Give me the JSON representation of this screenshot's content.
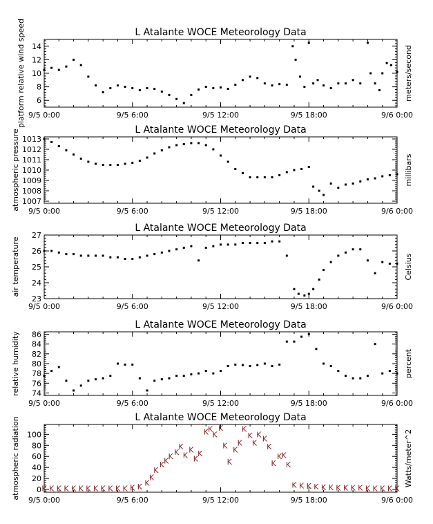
{
  "chart_data": [
    {
      "type": "scatter",
      "title": "L Atalante WOCE Meteorology Data",
      "ylabel": "platform relative wind speed",
      "ylabel_right": "meters/second",
      "xticks": [
        "9/5 0:00",
        "9/5 6:00",
        "9/5 12:00",
        "9/5 18:00",
        "9/6 0:00"
      ],
      "xlim": [
        0,
        24
      ],
      "ylim": [
        5,
        15
      ],
      "yticks": [
        6,
        8,
        10,
        12,
        14
      ],
      "series": [
        {
          "color": "#000000",
          "x": [
            0,
            0.5,
            1,
            1.5,
            2,
            2.5,
            3,
            3.5,
            4,
            4.5,
            5,
            5.5,
            6,
            6.5,
            7,
            7.5,
            8,
            8.5,
            9,
            9.5,
            10,
            10.5,
            11,
            11.5,
            12,
            12.5,
            13,
            13.5,
            14,
            14.5,
            15,
            15.5,
            16,
            16.5,
            16.9,
            17.1,
            17.4,
            17.7,
            18,
            18.3,
            18.6,
            19,
            19.5,
            20,
            20.5,
            21,
            21.5,
            22,
            22.2,
            22.5,
            22.8,
            23,
            23.3,
            23.6,
            24
          ],
          "y": [
            10.5,
            10.8,
            10.5,
            11,
            12,
            11.2,
            9.5,
            8.2,
            7.2,
            7.8,
            8.2,
            8,
            7.8,
            7.5,
            7.8,
            7.7,
            7.3,
            6.8,
            6.2,
            5.6,
            6.8,
            7.6,
            8,
            7.8,
            7.9,
            7.7,
            8.3,
            9,
            9.5,
            9.3,
            8.5,
            8.2,
            8.4,
            8.3,
            14,
            12,
            9.5,
            8,
            14.5,
            8.5,
            9,
            8.2,
            7.8,
            8.5,
            8.5,
            9,
            8.5,
            14.5,
            10,
            8.5,
            7.5,
            10,
            11.5,
            11.2,
            10.2
          ]
        }
      ]
    },
    {
      "type": "scatter",
      "title": "L Atalante WOCE Meteorology Data",
      "ylabel": "atmospheric pressure",
      "ylabel_right": "millibars",
      "xticks": [
        "9/5 0:00",
        "9/5 6:00",
        "9/5 12:00",
        "9/5 18:00",
        "9/6 0:00"
      ],
      "xlim": [
        0,
        24
      ],
      "ylim": [
        1006.8,
        1013.2
      ],
      "yticks": [
        1007,
        1008,
        1009,
        1010,
        1011,
        1012,
        1013
      ],
      "series": [
        {
          "color": "#000000",
          "x": [
            0,
            0.5,
            1,
            1.5,
            2,
            2.5,
            3,
            3.5,
            4,
            4.5,
            5,
            5.5,
            6,
            6.5,
            7,
            7.5,
            8,
            8.5,
            9,
            9.5,
            10,
            10.5,
            11,
            11.5,
            12,
            12.5,
            13,
            13.5,
            14,
            14.5,
            15,
            15.5,
            16,
            16.5,
            17,
            17.5,
            18,
            18.3,
            18.7,
            19,
            19.5,
            20,
            20.5,
            21,
            21.5,
            22,
            22.5,
            23,
            23.5,
            24
          ],
          "y": [
            1013,
            1012.7,
            1012.3,
            1011.9,
            1011.5,
            1011.1,
            1010.8,
            1010.6,
            1010.5,
            1010.5,
            1010.5,
            1010.6,
            1010.7,
            1010.9,
            1011.2,
            1011.6,
            1011.9,
            1012.2,
            1012.4,
            1012.5,
            1012.6,
            1012.6,
            1012.4,
            1012,
            1011.4,
            1010.8,
            1010.1,
            1009.7,
            1009.3,
            1009.3,
            1009.3,
            1009.3,
            1009.5,
            1009.8,
            1010,
            1010.1,
            1010.3,
            1008.4,
            1008,
            1007.6,
            1008.7,
            1008.3,
            1008.6,
            1008.7,
            1008.9,
            1009.1,
            1009.2,
            1009.4,
            1009.5,
            1009.6
          ]
        }
      ]
    },
    {
      "type": "scatter",
      "title": "L Atalante WOCE Meteorology Data",
      "ylabel": "air temperature",
      "ylabel_right": "Celsius",
      "xticks": [
        "9/5 0:00",
        "9/5 6:00",
        "9/5 12:00",
        "9/5 18:00",
        "9/6 0:00"
      ],
      "xlim": [
        0,
        24
      ],
      "ylim": [
        23,
        27
      ],
      "yticks": [
        23,
        24,
        25,
        26,
        27
      ],
      "series": [
        {
          "color": "#000000",
          "x": [
            0,
            0.5,
            1,
            1.5,
            2,
            2.5,
            3,
            3.5,
            4,
            4.5,
            5,
            5.5,
            6,
            6.5,
            7,
            7.5,
            8,
            8.5,
            9,
            9.5,
            10,
            10.5,
            11,
            11.5,
            12,
            12.5,
            13,
            13.5,
            14,
            14.5,
            15,
            15.5,
            16,
            16.5,
            17,
            17.3,
            17.7,
            18,
            18.3,
            18.7,
            19,
            19.5,
            20,
            20.5,
            21,
            21.5,
            22,
            22.5,
            23,
            23.5,
            24
          ],
          "y": [
            26,
            26,
            25.9,
            25.8,
            25.8,
            25.7,
            25.7,
            25.7,
            25.7,
            25.6,
            25.6,
            25.5,
            25.5,
            25.6,
            25.7,
            25.8,
            25.9,
            26,
            26.1,
            26.2,
            26.3,
            25.4,
            26.2,
            26.3,
            26.4,
            26.4,
            26.4,
            26.5,
            26.5,
            26.5,
            26.5,
            26.6,
            26.6,
            25.7,
            23.6,
            23.3,
            23.2,
            23.3,
            23.6,
            24.2,
            24.8,
            25.3,
            25.7,
            25.9,
            26.1,
            26.1,
            25.4,
            24.6,
            25.3,
            25.2,
            25.2
          ]
        }
      ]
    },
    {
      "type": "scatter",
      "title": "L Atalante WOCE Meteorology Data",
      "ylabel": "relative humidity",
      "ylabel_right": "percent",
      "xticks": [
        "9/5 0:00",
        "9/5 6:00",
        "9/5 12:00",
        "9/5 18:00",
        "9/6 0:00"
      ],
      "xlim": [
        0,
        24
      ],
      "ylim": [
        73.5,
        86.5
      ],
      "yticks": [
        74,
        76,
        78,
        80,
        82,
        84,
        86
      ],
      "series": [
        {
          "color": "#000000",
          "x": [
            0,
            0.5,
            1,
            1.5,
            2,
            2.5,
            3,
            3.5,
            4,
            4.5,
            5,
            5.5,
            6,
            6.5,
            7,
            7.5,
            8,
            8.5,
            9,
            9.5,
            10,
            10.5,
            11,
            11.5,
            12,
            12.5,
            13,
            13.5,
            14,
            14.5,
            15,
            15.5,
            16,
            16.5,
            17,
            17.5,
            18,
            18.5,
            19,
            19.5,
            20,
            20.5,
            21,
            21.5,
            22,
            22.5,
            23,
            23.5,
            24
          ],
          "y": [
            77.5,
            78.5,
            79.3,
            76.5,
            74.5,
            75.5,
            76.5,
            76.8,
            77,
            77.5,
            80,
            79.8,
            79.8,
            77,
            74.5,
            76.5,
            76.8,
            77,
            77.5,
            77.5,
            77.8,
            78,
            78.5,
            78,
            78.5,
            79.5,
            79.8,
            79.7,
            79.5,
            79.7,
            80,
            79.5,
            79.8,
            84.5,
            84.5,
            85.5,
            86,
            83,
            80,
            79.5,
            78.5,
            77.5,
            77,
            77,
            77.5,
            84,
            78,
            78.5,
            78
          ]
        }
      ]
    },
    {
      "type": "scatter",
      "title": "L Atalante WOCE Meteorology Data",
      "ylabel": "atmospheric radiation",
      "ylabel_right": "Watts/meter^2",
      "xticks": [
        "9/5 0:00",
        "9/5 6:00",
        "9/5 12:00",
        "9/5 18:00",
        "9/6 0:00"
      ],
      "xlim": [
        0,
        24
      ],
      "ylim": [
        -5,
        118
      ],
      "yticks": [
        0,
        20,
        40,
        60,
        80,
        100
      ],
      "series": [
        {
          "color": "#8b2020",
          "x": [
            0,
            0.5,
            1,
            1.5,
            2,
            2.5,
            3,
            3.5,
            4,
            4.5,
            5,
            5.5,
            6,
            6.5,
            7,
            7.3,
            7.6,
            8,
            8.3,
            8.6,
            9,
            9.3,
            9.6,
            10,
            10.3,
            10.6,
            11,
            11.3,
            11.6,
            12,
            12.3,
            12.6,
            13,
            13.3,
            13.6,
            14,
            14.3,
            14.6,
            15,
            15.3,
            15.6,
            16,
            16.3,
            16.6,
            17,
            17.5,
            18,
            18.5,
            19,
            19.5,
            20,
            20.5,
            21,
            21.5,
            22,
            22.5,
            23,
            23.5,
            24
          ],
          "y": [
            2,
            2,
            2,
            2,
            2,
            2,
            2,
            2,
            2,
            2,
            2,
            2,
            3,
            5,
            12,
            22,
            35,
            45,
            52,
            60,
            68,
            78,
            62,
            72,
            56,
            65,
            105,
            110,
            100,
            112,
            80,
            50,
            72,
            85,
            110,
            98,
            85,
            100,
            92,
            78,
            48,
            60,
            62,
            45,
            8,
            7,
            6,
            5,
            4,
            4,
            3,
            3,
            3,
            3,
            2,
            2,
            2,
            2,
            2
          ]
        }
      ]
    }
  ]
}
